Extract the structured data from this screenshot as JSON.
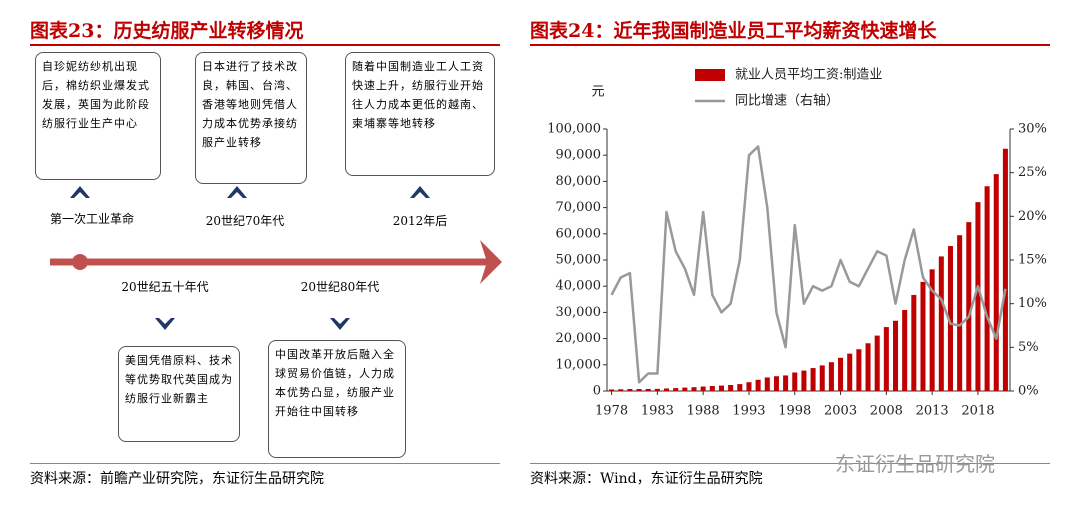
{
  "timeline": {
    "title": "图表23：历史纺服产业转移情况",
    "top_events": [
      {
        "label": "第一次工业革命",
        "text": "自珍妮纺纱机出现后，棉纺织业爆发式发展，英国为此阶段纺服行业生产中心"
      },
      {
        "label": "20世纪70年代",
        "text": "日本进行了技术改良，韩国、台湾、香港等地则凭借人力成本优势承接纺服产业转移"
      },
      {
        "label": "2012年后",
        "text": "随着中国制造业工人工资快速上升，纺服行业开始往人力成本更低的越南、柬埔寨等地转移"
      }
    ],
    "bottom_events": [
      {
        "label": "20世纪五十年代",
        "text": "美国凭借原料、技术等优势取代英国成为纺服行业新霸主"
      },
      {
        "label": "20世纪80年代",
        "text": "中国改革开放后融入全球贸易价值链，人力成本优势凸显，纺服产业开始往中国转移"
      }
    ],
    "source": "资料来源：前瞻产业研究院，东证衍生品研究院"
  },
  "chart_data": {
    "type": "bar_line",
    "title": "图表24：近年我国制造业员工平均薪资快速增长",
    "ylabel": "元",
    "x": [
      1978,
      1979,
      1980,
      1981,
      1982,
      1983,
      1984,
      1985,
      1986,
      1987,
      1988,
      1989,
      1990,
      1991,
      1992,
      1993,
      1994,
      1995,
      1996,
      1997,
      1998,
      1999,
      2000,
      2001,
      2002,
      2003,
      2004,
      2005,
      2006,
      2007,
      2008,
      2009,
      2010,
      2011,
      2012,
      2013,
      2014,
      2015,
      2016,
      2017,
      2018,
      2019,
      2020,
      2021
    ],
    "series": [
      {
        "name": "就业人员平均工资:制造业",
        "color": "#c00000",
        "type": "bar",
        "values": [
          597,
          660,
          752,
          760,
          780,
          810,
          960,
          1112,
          1300,
          1450,
          1700,
          1900,
          2073,
          2289,
          2635,
          3348,
          4283,
          5169,
          5642,
          5933,
          7064,
          7794,
          8750,
          9774,
          11001,
          12671,
          14251,
          15934,
          18225,
          21144,
          24404,
          26810,
          30916,
          36665,
          41650,
          46431,
          51369,
          55324,
          59470,
          64452,
          72088,
          78147,
          82783,
          92459
        ]
      },
      {
        "name": "同比增速（右轴）",
        "color": "#999999",
        "type": "line",
        "axis": "y2",
        "values": [
          11,
          13,
          13.5,
          1,
          2,
          2,
          20.5,
          16,
          14,
          11,
          20.5,
          11,
          9,
          10,
          15,
          27,
          28,
          21,
          9,
          5,
          19,
          10,
          12,
          11.5,
          12,
          15,
          12.5,
          12,
          14,
          16,
          15.5,
          10,
          15,
          18.5,
          13,
          11.5,
          10.5,
          7.7,
          7.5,
          8.5,
          12,
          8.5,
          6,
          11.7
        ]
      }
    ],
    "xlim": [
      1977.5,
      2021.5
    ],
    "xticks": [
      1978,
      1983,
      1988,
      1993,
      1998,
      2003,
      2008,
      2013,
      2018
    ],
    "ylim": [
      0,
      100000
    ],
    "yticks": [
      0,
      {
        "value": 10000,
        "label": "10,000"
      },
      {
        "value": 20000,
        "label": "20,000"
      },
      {
        "value": 30000,
        "label": "30,000"
      },
      {
        "value": 40000,
        "label": "40,000"
      },
      {
        "value": 50000,
        "label": "50,000"
      },
      {
        "value": 60000,
        "label": "60,000"
      },
      {
        "value": 70000,
        "label": "70,000"
      },
      {
        "value": 80000,
        "label": "80,000"
      },
      {
        "value": 90000,
        "label": "90,000"
      },
      {
        "value": 100000,
        "label": "100,000"
      }
    ],
    "y2lim": [
      0,
      30
    ],
    "y2ticks": [
      {
        "value": 0,
        "label": "0%"
      },
      {
        "value": 5,
        "label": "5%"
      },
      {
        "value": 10,
        "label": "10%"
      },
      {
        "value": 15,
        "label": "15%"
      },
      {
        "value": 20,
        "label": "20%"
      },
      {
        "value": 25,
        "label": "25%"
      },
      {
        "value": 30,
        "label": "30%"
      }
    ],
    "legend": "top",
    "source": "资料来源：Wind，东证衍生品研究院"
  },
  "watermark": "东证衍生品研究院"
}
